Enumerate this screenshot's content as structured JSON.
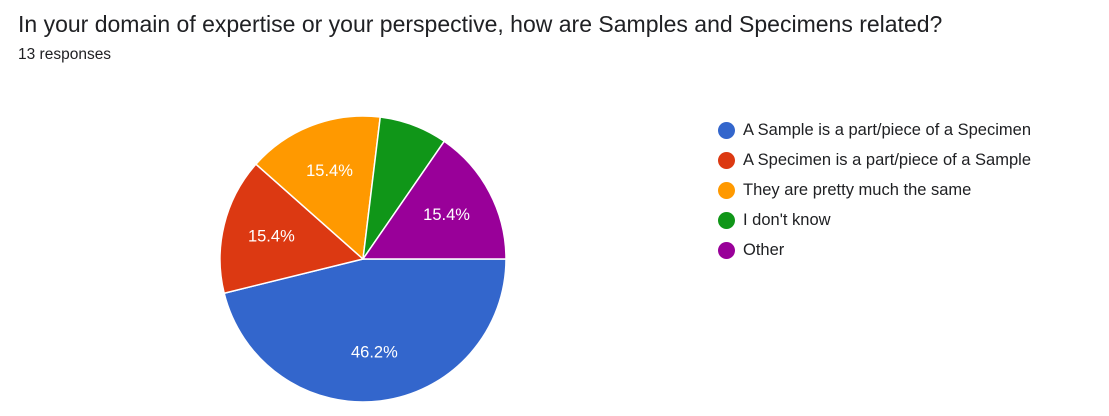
{
  "header": {
    "question": "In your domain of expertise or your perspective, how are Samples and Specimens related?",
    "response_count": "13 responses"
  },
  "chart_data": {
    "type": "pie",
    "total_responses": 13,
    "slices": [
      {
        "label": "A Sample is a part/piece of a Specimen",
        "value": 6,
        "percent_label": "46.2%",
        "color": "#3366cc"
      },
      {
        "label": "A Specimen is a part/piece of a Sample",
        "value": 2,
        "percent_label": "15.4%",
        "color": "#dc3912"
      },
      {
        "label": "They are pretty much the same",
        "value": 2,
        "percent_label": "15.4%",
        "color": "#ff9900"
      },
      {
        "label": "I don't know",
        "value": 1,
        "percent_label": "",
        "color": "#109618"
      },
      {
        "label": "Other",
        "value": 2,
        "percent_label": "15.4%",
        "color": "#990099"
      }
    ],
    "start_angle": "3 o'clock",
    "direction": "clockwise",
    "legend_position": "right"
  }
}
